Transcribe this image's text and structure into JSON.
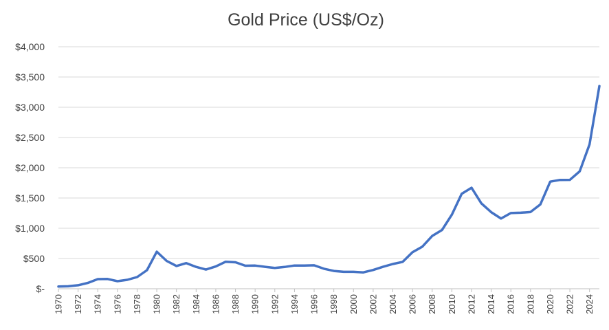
{
  "chart_data": {
    "type": "line",
    "title": "Gold Price (US$/Oz)",
    "xlabel": "",
    "ylabel": "",
    "ylim": [
      0,
      4000
    ],
    "y_ticks": [
      0,
      500,
      1000,
      1500,
      2000,
      2500,
      3000,
      3500,
      4000
    ],
    "y_tick_labels": [
      "$-",
      "$500",
      "$1,000",
      "$1,500",
      "$2,000",
      "$2,500",
      "$3,000",
      "$3,500",
      "$4,000"
    ],
    "x_tick_labels": [
      "1970",
      "1972",
      "1974",
      "1976",
      "1978",
      "1980",
      "1982",
      "1984",
      "1986",
      "1988",
      "1990",
      "1992",
      "1994",
      "1996",
      "1998",
      "2000",
      "2002",
      "2004",
      "2006",
      "2008",
      "2010",
      "2012",
      "2014",
      "2016",
      "2018",
      "2020",
      "2022",
      "2024"
    ],
    "grid": true,
    "legend": "none",
    "series_color": "#4472C4",
    "x": [
      1970,
      1971,
      1972,
      1973,
      1974,
      1975,
      1976,
      1977,
      1978,
      1979,
      1980,
      1981,
      1982,
      1983,
      1984,
      1985,
      1986,
      1987,
      1988,
      1989,
      1990,
      1991,
      1992,
      1993,
      1994,
      1995,
      1996,
      1997,
      1998,
      1999,
      2000,
      2001,
      2002,
      2003,
      2004,
      2005,
      2006,
      2007,
      2008,
      2009,
      2010,
      2011,
      2012,
      2013,
      2014,
      2015,
      2016,
      2017,
      2018,
      2019,
      2020,
      2021,
      2022,
      2023,
      2024,
      2025
    ],
    "series": [
      {
        "values": [
          36,
          41,
          58,
          97,
          159,
          161,
          125,
          148,
          193,
          307,
          612,
          460,
          376,
          424,
          361,
          317,
          368,
          447,
          437,
          381,
          383,
          362,
          344,
          360,
          384,
          384,
          388,
          331,
          294,
          279,
          279,
          271,
          310,
          363,
          409,
          444,
          603,
          695,
          872,
          972,
          1225,
          1569,
          1669,
          1411,
          1266,
          1160,
          1251,
          1257,
          1268,
          1393,
          1770,
          1799,
          1800,
          1941,
          2386,
          3350
        ]
      }
    ]
  }
}
